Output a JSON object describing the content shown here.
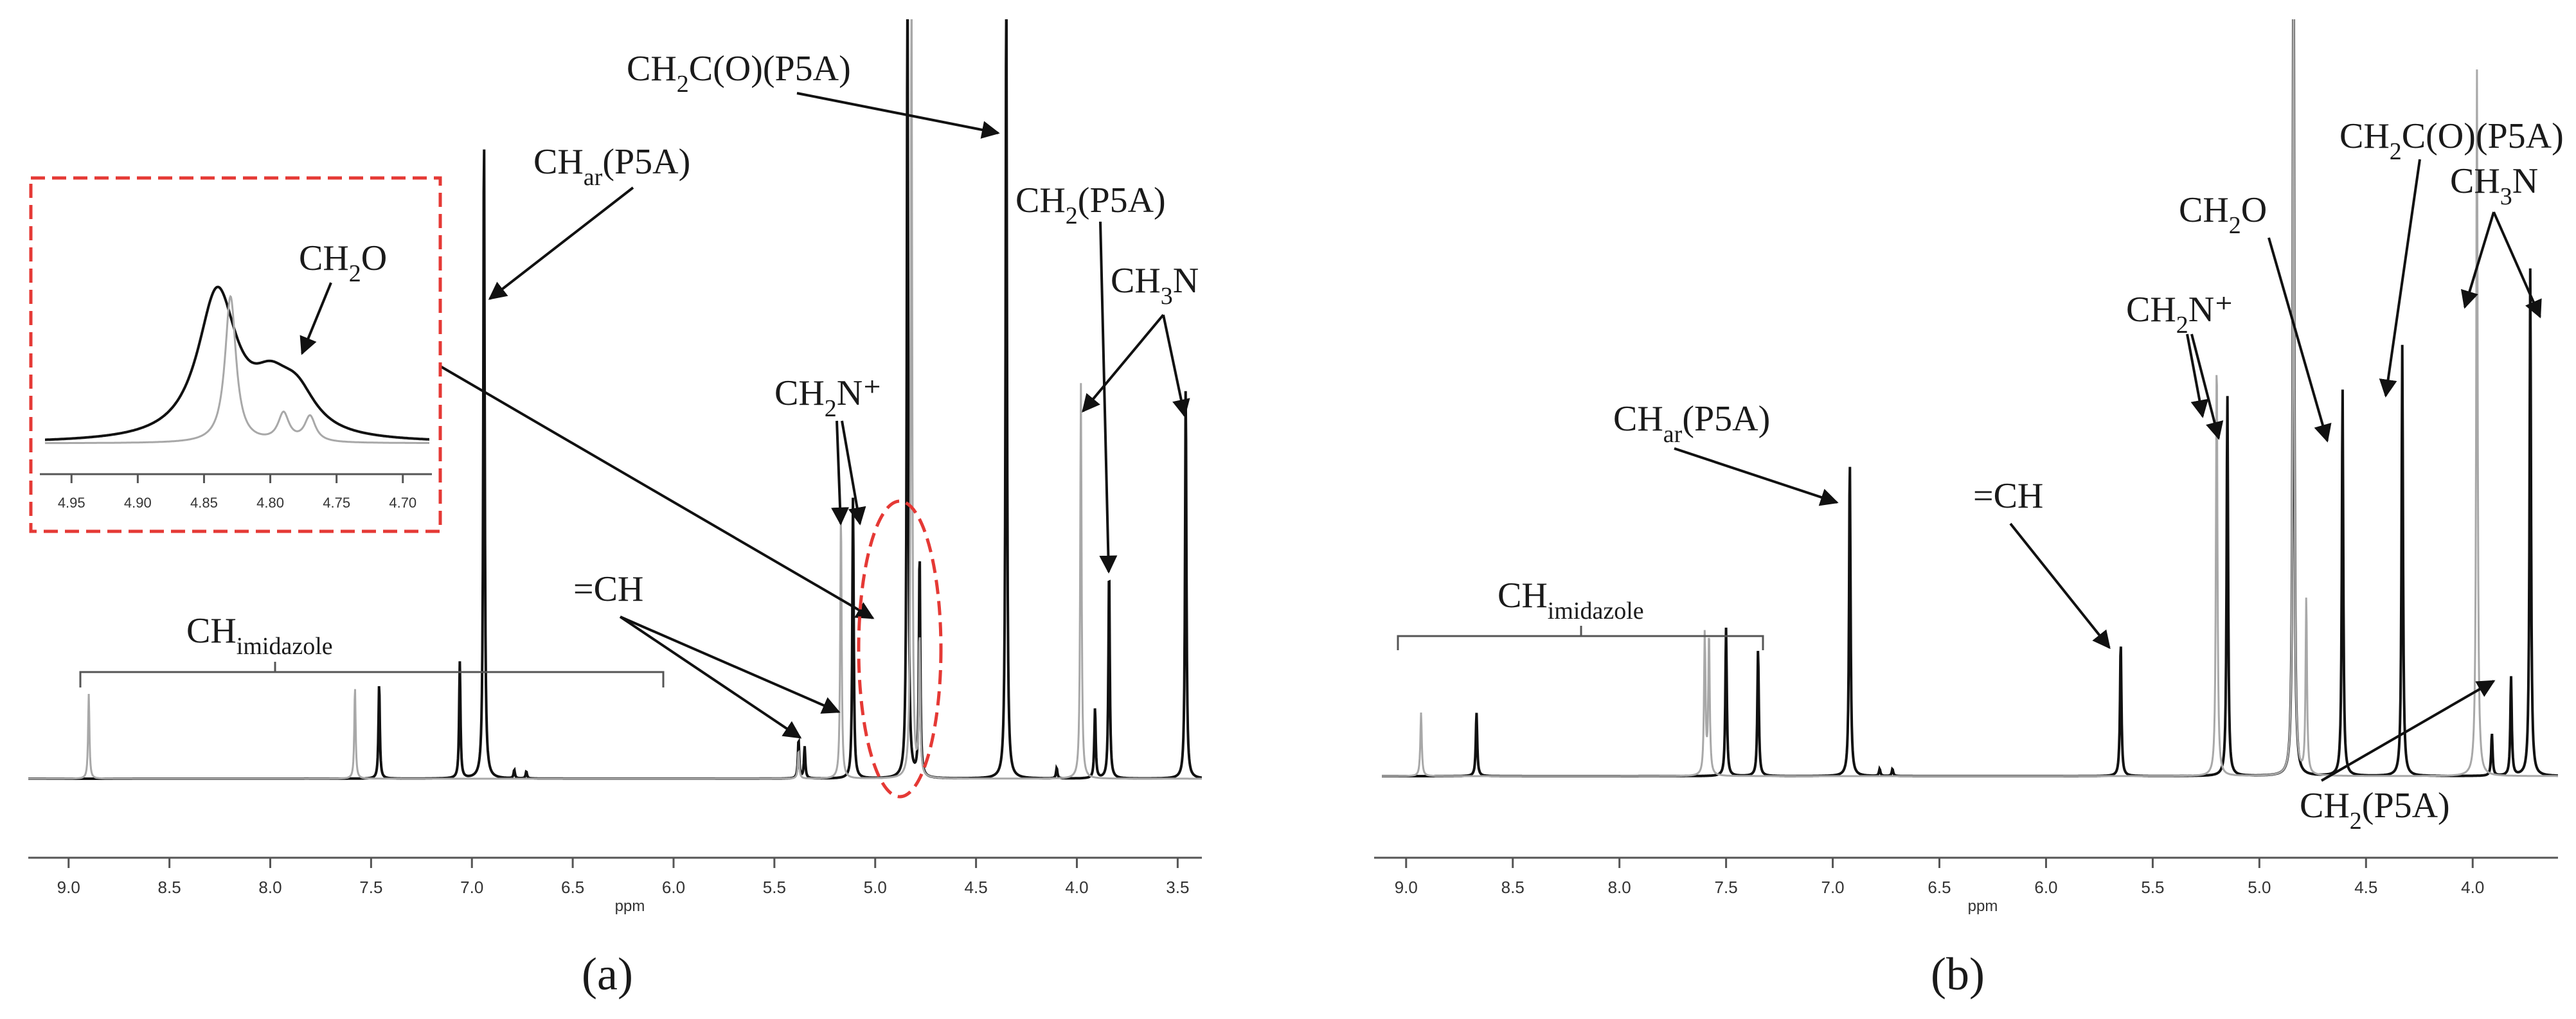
{
  "panel_labels": [
    "(a)",
    "(b)"
  ],
  "chart_data": [
    {
      "type": "line",
      "panel": "(a)",
      "xlabel": "ppm",
      "xlim": [
        9.2,
        3.38
      ],
      "xticks": [
        "9.0",
        "8.5",
        "8.0",
        "7.5",
        "7.0",
        "6.5",
        "6.0",
        "5.5",
        "5.0",
        "4.5",
        "4.0",
        "3.5"
      ],
      "series": [
        {
          "color": "#111111",
          "peaks": [
            {
              "x": 7.46,
              "y": 0.135
            },
            {
              "x": 7.06,
              "y": 0.165
            },
            {
              "x": 6.94,
              "y": 0.93
            },
            {
              "x": 6.79,
              "y": 0.012
            },
            {
              "x": 6.73,
              "y": 0.01
            },
            {
              "x": 5.38,
              "y": 0.055
            },
            {
              "x": 5.35,
              "y": 0.045
            },
            {
              "x": 5.11,
              "y": 0.4
            },
            {
              "x": 4.84,
              "y": 1.15
            },
            {
              "x": 4.78,
              "y": 0.32
            },
            {
              "x": 4.35,
              "y": 1.15
            },
            {
              "x": 4.1,
              "y": 0.015
            },
            {
              "x": 3.91,
              "y": 0.1
            },
            {
              "x": 3.84,
              "y": 0.3
            },
            {
              "x": 3.46,
              "y": 0.56
            }
          ]
        },
        {
          "color": "#a8a8a8",
          "peaks": [
            {
              "x": 8.9,
              "y": 0.12
            },
            {
              "x": 7.58,
              "y": 0.13
            },
            {
              "x": 5.38,
              "y": 0.04
            },
            {
              "x": 5.17,
              "y": 0.38
            },
            {
              "x": 4.82,
              "y": 1.15
            },
            {
              "x": 4.78,
              "y": 0.2
            },
            {
              "x": 3.98,
              "y": 0.56
            }
          ]
        }
      ],
      "inset": {
        "xlim": [
          4.97,
          4.68
        ],
        "xticks": [
          "4.95",
          "4.90",
          "4.85",
          "4.80",
          "4.75",
          "4.70"
        ],
        "label": {
          "main": "CH",
          "sub": "2",
          "tail": "O"
        }
      },
      "annotations": [
        {
          "id": "chimid",
          "main": "CH",
          "sub": "imidazole",
          "tail": ""
        },
        {
          "id": "char",
          "main": "CH",
          "sub": "ar",
          "tail": "(P5A)"
        },
        {
          "id": "ch2co",
          "main": "CH",
          "sub": "2",
          "tail": "C(O)(P5A)"
        },
        {
          "id": "ch2p5a",
          "main": "CH",
          "sub": "2",
          "tail": "(P5A)"
        },
        {
          "id": "ch3n",
          "main": "CH",
          "sub": "3",
          "tail": "N"
        },
        {
          "id": "ch2n",
          "main": "CH",
          "sub": "2",
          "tail": "N⁺"
        },
        {
          "id": "eqch",
          "main": "=CH",
          "sub": "",
          "tail": ""
        }
      ]
    },
    {
      "type": "line",
      "panel": "(b)",
      "xlabel": "ppm",
      "xlim": [
        9.15,
        3.6
      ],
      "xticks": [
        "9.0",
        "8.5",
        "8.0",
        "7.5",
        "7.0",
        "6.5",
        "6.0",
        "5.5",
        "5.0",
        "4.5",
        "4.0"
      ],
      "series": [
        {
          "color": "#111111",
          "peaks": [
            {
              "x": 8.67,
              "y": 0.09
            },
            {
              "x": 7.5,
              "y": 0.21
            },
            {
              "x": 7.35,
              "y": 0.18
            },
            {
              "x": 6.92,
              "y": 0.45
            },
            {
              "x": 6.78,
              "y": 0.01
            },
            {
              "x": 6.72,
              "y": 0.01
            },
            {
              "x": 5.65,
              "y": 0.19
            },
            {
              "x": 5.15,
              "y": 0.54
            },
            {
              "x": 4.84,
              "y": 1.25
            },
            {
              "x": 4.61,
              "y": 0.55
            },
            {
              "x": 4.33,
              "y": 0.61
            },
            {
              "x": 3.91,
              "y": 0.06
            },
            {
              "x": 3.82,
              "y": 0.14
            },
            {
              "x": 3.73,
              "y": 0.72
            }
          ]
        },
        {
          "color": "#a8a8a8",
          "peaks": [
            {
              "x": 8.93,
              "y": 0.09
            },
            {
              "x": 7.6,
              "y": 0.2
            },
            {
              "x": 7.58,
              "y": 0.2
            },
            {
              "x": 5.2,
              "y": 0.6
            },
            {
              "x": 4.84,
              "y": 1.25
            },
            {
              "x": 4.78,
              "y": 0.25
            },
            {
              "x": 3.98,
              "y": 1.0
            }
          ]
        }
      ],
      "annotations": [
        {
          "id": "chimid",
          "main": "CH",
          "sub": "imidazole",
          "tail": ""
        },
        {
          "id": "char",
          "main": "CH",
          "sub": "ar",
          "tail": "(P5A)"
        },
        {
          "id": "eqch",
          "main": "=CH",
          "sub": "",
          "tail": ""
        },
        {
          "id": "ch2n",
          "main": "CH",
          "sub": "2",
          "tail": "N⁺"
        },
        {
          "id": "ch2o",
          "main": "CH",
          "sub": "2",
          "tail": "O"
        },
        {
          "id": "ch2co",
          "main": "CH",
          "sub": "2",
          "tail": "C(O)(P5A)"
        },
        {
          "id": "ch3n",
          "main": "CH",
          "sub": "3",
          "tail": "N"
        },
        {
          "id": "ch2p5a",
          "main": "CH",
          "sub": "2",
          "tail": "(P5A)"
        }
      ]
    }
  ]
}
